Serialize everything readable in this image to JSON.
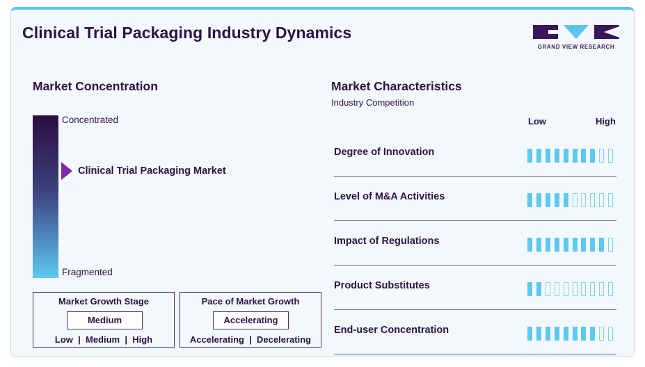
{
  "header": {
    "title": "Clinical Trial Packaging Industry Dynamics"
  },
  "logo": {
    "text": "GRAND VIEW RESEARCH",
    "colors": {
      "dark": "#3a1757",
      "accent": "#5ec3e8"
    }
  },
  "concentration": {
    "title": "Market Concentration",
    "top_label": "Concentrated",
    "bottom_label": "Fragmented",
    "market_label": "Clinical Trial Packaging Market",
    "position": 0.32
  },
  "growth_stage": {
    "title": "Market Growth Stage",
    "value": "Medium",
    "options_text": "Low  |  Medium  |  High"
  },
  "growth_pace": {
    "title": "Pace of Market Growth",
    "value": "Accelerating",
    "options_text": "Accelerating  |  Decelerating"
  },
  "characteristics": {
    "title": "Market Characteristics",
    "subtitle": "Industry Competition",
    "low_label": "Low",
    "high_label": "High",
    "segments_total": 10,
    "rows": [
      {
        "label": "Degree of Innovation",
        "level": 8
      },
      {
        "label": "Level of M&A Activities",
        "level": 5
      },
      {
        "label": "Impact of Regulations",
        "level": 9
      },
      {
        "label": "Product Substitutes",
        "level": 2
      },
      {
        "label": "End-user Concentration",
        "level": 8
      }
    ]
  }
}
